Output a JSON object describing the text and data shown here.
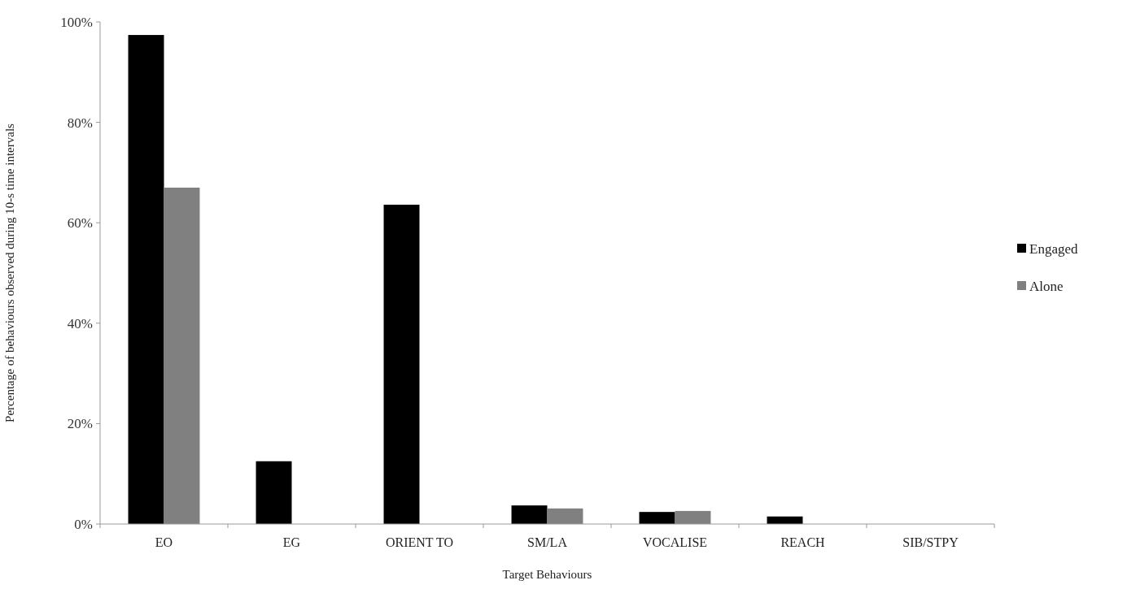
{
  "chart_data": {
    "type": "bar",
    "xlabel": "Target Behaviours",
    "ylabel": "Percentage of behaviours observed during 10-s time intervals",
    "categories": [
      "EO",
      "EG",
      "ORIENT TO",
      "SM/LA",
      "VOCALISE",
      "REACH",
      "SIB/STPY"
    ],
    "series": [
      {
        "name": "Engaged",
        "color": "#000000",
        "values": [
          97.4,
          12.5,
          63.6,
          3.7,
          2.4,
          1.5,
          0
        ]
      },
      {
        "name": "Alone",
        "color": "#808080",
        "values": [
          67.0,
          0,
          0,
          3.1,
          2.6,
          0,
          0
        ]
      }
    ],
    "ylim": [
      0,
      100
    ],
    "yticks": [
      {
        "value": 0,
        "label": "0%"
      },
      {
        "value": 20,
        "label": "20%"
      },
      {
        "value": 40,
        "label": "40%"
      },
      {
        "value": 60,
        "label": "60%"
      },
      {
        "value": 80,
        "label": "80%"
      },
      {
        "value": 100,
        "label": "100%"
      }
    ],
    "grid": false,
    "legend": "right"
  }
}
